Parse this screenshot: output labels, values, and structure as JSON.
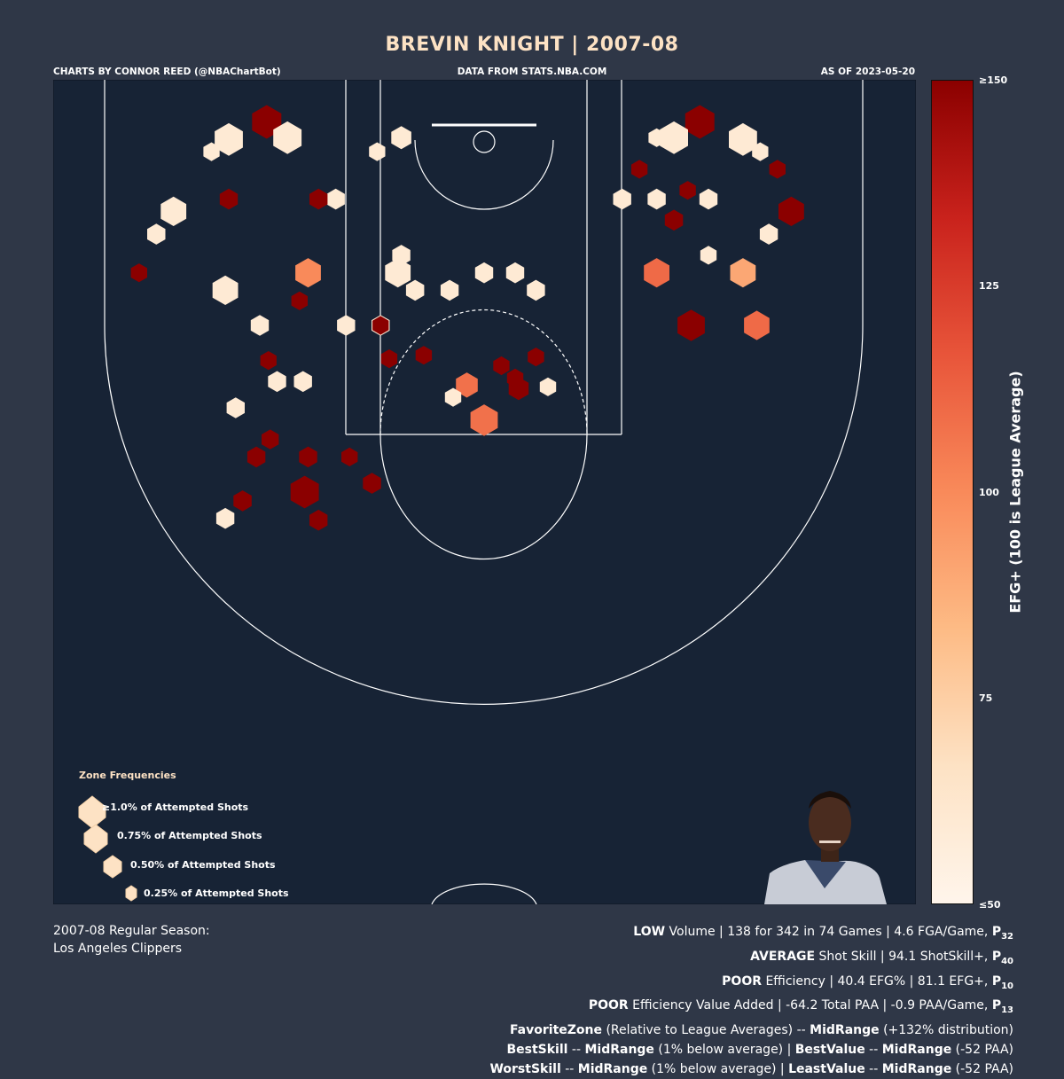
{
  "header": {
    "title": "BREVIN KNIGHT | 2007-08",
    "credit_left": "CHARTS BY CONNOR REED (@NBAChartBot)",
    "credit_mid": "DATA FROM STATS.NBA.COM",
    "credit_right": "AS OF 2023-05-20"
  },
  "colors": {
    "background": "#2f3747",
    "court": "#172335",
    "scale": [
      "#fff5eb",
      "#fde2c4",
      "#fdbb85",
      "#f98a5a",
      "#e8553a",
      "#c9221c",
      "#8b0000"
    ]
  },
  "chart_data": {
    "type": "hexbin",
    "title": "BREVIN KNIGHT | 2007-08",
    "colorbar": {
      "label": "EFG+ (100 is League Average)",
      "ticks": [
        "≥150",
        "125",
        "100",
        "75",
        "≤50"
      ],
      "tick_values": [
        150,
        125,
        100,
        75,
        50
      ],
      "range": [
        50,
        150
      ]
    },
    "legend": {
      "title": "Zone Frequencies",
      "items": [
        {
          "label": "≥1.0% of Attempted Shots",
          "freq": 1.0
        },
        {
          "label": "0.75% of Attempted Shots",
          "freq": 0.75
        },
        {
          "label": "0.50% of Attempted Shots",
          "freq": 0.5
        },
        {
          "label": "0.25% of Attempted Shots",
          "freq": 0.25
        }
      ]
    },
    "hexes": [
      [
        -148,
        74,
        0.95,
        60
      ],
      [
        -126,
        64,
        1.0,
        150
      ],
      [
        -114,
        73,
        0.95,
        60
      ],
      [
        -48,
        73,
        0.5,
        60
      ],
      [
        -158,
        81,
        0.3,
        60
      ],
      [
        -62,
        81,
        0.3,
        60
      ],
      [
        -86,
        108,
        0.4,
        60
      ],
      [
        -148,
        108,
        0.4,
        150
      ],
      [
        -96,
        108,
        0.4,
        150
      ],
      [
        -130,
        180,
        0.4,
        60
      ],
      [
        -80,
        180,
        0.4,
        60
      ],
      [
        -60,
        180,
        0.4,
        60
      ],
      [
        -120,
        212,
        0.4,
        60
      ],
      [
        -105,
        212,
        0.4,
        60
      ],
      [
        -125,
        200,
        0.3,
        150
      ],
      [
        -132,
        255,
        0.4,
        150
      ],
      [
        -102,
        255,
        0.4,
        150
      ],
      [
        -104,
        275,
        0.95,
        150
      ],
      [
        -96,
        291,
        0.4,
        150
      ],
      [
        -78,
        255,
        0.3,
        150
      ],
      [
        -65,
        270,
        0.4,
        150
      ],
      [
        -124,
        245,
        0.35,
        150
      ],
      [
        -144,
        227,
        0.4,
        60
      ],
      [
        -107,
        166,
        0.3,
        150
      ],
      [
        0,
        234,
        0.9,
        108
      ],
      [
        -10,
        214,
        0.6,
        108
      ],
      [
        20,
        216,
        0.5,
        150
      ],
      [
        37,
        215,
        0.3,
        60
      ],
      [
        -55,
        199,
        0.3,
        150
      ],
      [
        -35,
        197,
        0.3,
        150
      ],
      [
        -60,
        180,
        0.3,
        150
      ],
      [
        -102,
        150,
        0.8,
        100
      ],
      [
        -50,
        150,
        0.8,
        60
      ],
      [
        -150,
        160,
        0.8,
        60
      ],
      [
        -180,
        115,
        0.8,
        60
      ],
      [
        -190,
        128,
        0.4,
        60
      ],
      [
        -200,
        150,
        0.3,
        150
      ],
      [
        -150,
        290,
        0.4,
        60
      ],
      [
        -140,
        280,
        0.4,
        150
      ],
      [
        -18,
        221,
        0.3,
        60
      ],
      [
        10,
        203,
        0.3,
        150
      ],
      [
        18,
        210,
        0.3,
        150
      ],
      [
        30,
        198,
        0.3,
        150
      ],
      [
        0,
        150,
        0.4,
        60
      ],
      [
        -20,
        160,
        0.4,
        60
      ],
      [
        18,
        150,
        0.4,
        60
      ],
      [
        30,
        160,
        0.4,
        60
      ],
      [
        -40,
        160,
        0.4,
        60
      ],
      [
        -48,
        140,
        0.4,
        60
      ],
      [
        150,
        74,
        0.95,
        60
      ],
      [
        125,
        64,
        1.0,
        150
      ],
      [
        110,
        73,
        0.95,
        60
      ],
      [
        100,
        73,
        0.3,
        60
      ],
      [
        160,
        81,
        0.3,
        60
      ],
      [
        170,
        91,
        0.3,
        150
      ],
      [
        90,
        91,
        0.3,
        150
      ],
      [
        130,
        108,
        0.4,
        60
      ],
      [
        100,
        108,
        0.4,
        60
      ],
      [
        80,
        108,
        0.4,
        60
      ],
      [
        110,
        120,
        0.4,
        150
      ],
      [
        118,
        103,
        0.3,
        150
      ],
      [
        130,
        140,
        0.3,
        60
      ],
      [
        178,
        115,
        0.8,
        150
      ],
      [
        165,
        128,
        0.4,
        60
      ],
      [
        150,
        150,
        0.8,
        90
      ],
      [
        158,
        180,
        0.8,
        110
      ],
      [
        120,
        180,
        0.9,
        150
      ],
      [
        100,
        150,
        0.8,
        110
      ]
    ]
  },
  "legend_frequency_note": "Zone Frequencies",
  "footer": {
    "season_line1": "2007-08 Regular Season:",
    "season_line2": "Los Angeles Clippers",
    "stats": [
      {
        "parts": [
          [
            "b",
            "LOW"
          ],
          [
            "t",
            " Volume | 138 for 342 in 74 Games | 4.6 FGA/Game, "
          ],
          [
            "b",
            "P"
          ],
          [
            "sub",
            "32"
          ]
        ]
      },
      {
        "parts": [
          [
            "b",
            "AVERAGE"
          ],
          [
            "t",
            " Shot Skill | 94.1 ShotSkill+, "
          ],
          [
            "b",
            "P"
          ],
          [
            "sub",
            "40"
          ]
        ]
      },
      {
        "parts": [
          [
            "b",
            "POOR"
          ],
          [
            "t",
            " Efficiency | 40.4 EFG% | 81.1 EFG+, "
          ],
          [
            "b",
            "P"
          ],
          [
            "sub",
            "10"
          ]
        ]
      },
      {
        "parts": [
          [
            "b",
            "POOR"
          ],
          [
            "t",
            " Efficiency Value Added | -64.2 Total PAA | -0.9 PAA/Game, "
          ],
          [
            "b",
            "P"
          ],
          [
            "sub",
            "13"
          ]
        ]
      },
      {
        "parts": [
          [
            "b",
            "FavoriteZone"
          ],
          [
            "t",
            " (Relative to League Averages) -- "
          ],
          [
            "b",
            "MidRange"
          ],
          [
            "t",
            " (+132% distribution)"
          ]
        ]
      },
      {
        "parts": [
          [
            "b",
            "BestSkill"
          ],
          [
            "t",
            " -- "
          ],
          [
            "b",
            "MidRange"
          ],
          [
            "t",
            " (1% below average) | "
          ],
          [
            "b",
            "BestValue"
          ],
          [
            "t",
            " -- "
          ],
          [
            "b",
            "MidRange"
          ],
          [
            "t",
            " (-52 PAA)"
          ]
        ]
      },
      {
        "parts": [
          [
            "b",
            "WorstSkill"
          ],
          [
            "t",
            " -- "
          ],
          [
            "b",
            "MidRange"
          ],
          [
            "t",
            " (1% below average) | "
          ],
          [
            "b",
            "LeastValue"
          ],
          [
            "t",
            " -- "
          ],
          [
            "b",
            "MidRange"
          ],
          [
            "t",
            " (-52 PAA)"
          ]
        ]
      }
    ]
  }
}
